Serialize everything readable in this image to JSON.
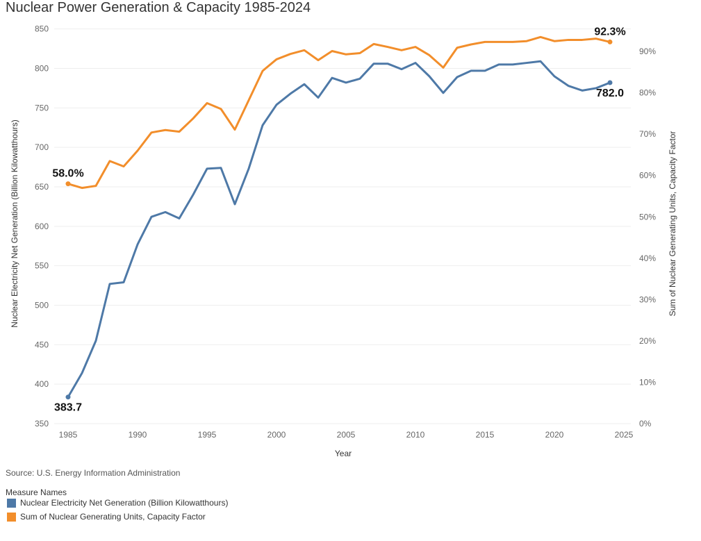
{
  "chart_data": {
    "type": "line",
    "title": "Nuclear Power Generation & Capacity 1985-2024",
    "xlabel": "Year",
    "ylabel_left": "Nuclear Electricity Net Generation (Billion Kilowatthours)",
    "ylabel_right": "Sum of Nuclear Generating Units, Capacity Factor",
    "x": [
      1985,
      1986,
      1987,
      1988,
      1989,
      1990,
      1991,
      1992,
      1993,
      1994,
      1995,
      1996,
      1997,
      1998,
      1999,
      2000,
      2001,
      2002,
      2003,
      2004,
      2005,
      2006,
      2007,
      2008,
      2009,
      2010,
      2011,
      2012,
      2013,
      2014,
      2015,
      2016,
      2017,
      2018,
      2019,
      2020,
      2021,
      2022,
      2023,
      2024
    ],
    "xlim": [
      1984,
      2025.5
    ],
    "xticks": [
      1985,
      1990,
      1995,
      2000,
      2005,
      2010,
      2015,
      2020,
      2025
    ],
    "ylim_left": [
      350,
      855
    ],
    "yticks_left": [
      350,
      400,
      450,
      500,
      550,
      600,
      650,
      700,
      750,
      800,
      850
    ],
    "ylim_right": [
      0,
      96.4
    ],
    "yticks_right": [
      0,
      10,
      20,
      30,
      40,
      50,
      60,
      70,
      80,
      90
    ],
    "yticks_right_labels": [
      "0%",
      "10%",
      "20%",
      "30%",
      "40%",
      "50%",
      "60%",
      "70%",
      "80%",
      "90%"
    ],
    "series": [
      {
        "name": "Nuclear Electricity Net Generation (Billion Kilowatthours)",
        "axis": "left",
        "color": "#4e79a7",
        "values": [
          383.7,
          414,
          455,
          527,
          529,
          577,
          612,
          618,
          610,
          640,
          673,
          674,
          628,
          673,
          728,
          754,
          768,
          780,
          763,
          788,
          782,
          787,
          806,
          806,
          799,
          807,
          790,
          769,
          789,
          797,
          797,
          805,
          805,
          807,
          809,
          790,
          778,
          772,
          775,
          782.0
        ]
      },
      {
        "name": "Sum of Nuclear Generating Units, Capacity Factor",
        "axis": "right",
        "color": "#f28e2b",
        "values": [
          58.0,
          57.0,
          57.5,
          63.5,
          62.2,
          66.0,
          70.4,
          71.0,
          70.6,
          73.8,
          77.5,
          76.1,
          71.1,
          78.2,
          85.3,
          88.1,
          89.4,
          90.3,
          87.9,
          90.1,
          89.3,
          89.6,
          91.8,
          91.1,
          90.3,
          91.1,
          89.1,
          86.1,
          90.9,
          91.7,
          92.3,
          92.3,
          92.3,
          92.5,
          93.5,
          92.5,
          92.8,
          92.8,
          93.1,
          92.3
        ]
      }
    ],
    "annotations": [
      {
        "text": "383.7",
        "series": 0,
        "index": 0,
        "position": "below"
      },
      {
        "text": "782.0",
        "series": 0,
        "index": 39,
        "position": "below"
      },
      {
        "text": "58.0%",
        "series": 1,
        "index": 0,
        "position": "above"
      },
      {
        "text": "92.3%",
        "series": 1,
        "index": 39,
        "position": "above"
      }
    ]
  },
  "source": "Source: U.S. Energy Information Administration",
  "legend": {
    "title": "Measure Names",
    "items": [
      {
        "label": "Nuclear Electricity Net Generation (Billion Kilowatthours)",
        "color": "#4e79a7"
      },
      {
        "label": "Sum of Nuclear Generating Units, Capacity Factor",
        "color": "#f28e2b"
      }
    ]
  }
}
